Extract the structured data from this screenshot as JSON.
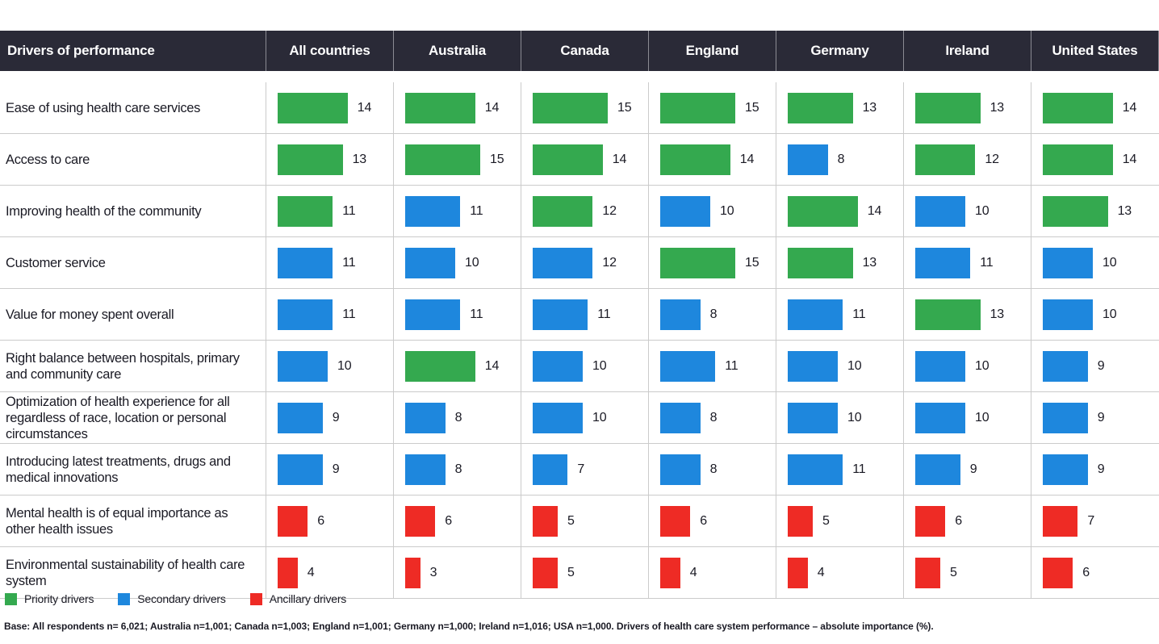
{
  "colors": {
    "priority": "#34a94f",
    "secondary": "#1e87dd",
    "ancillary": "#ee2b25",
    "header_bg": "#2a2a37",
    "grid_line": "#cbcbcb"
  },
  "chart_data": {
    "type": "table",
    "title": "Drivers of health care system performance – absolute importance (%)",
    "columns": [
      "Drivers of performance",
      "All countries",
      "Australia",
      "Canada",
      "England",
      "Germany",
      "Ireland",
      "United States"
    ],
    "value_range": [
      0,
      15
    ],
    "legend_position": "bottom-left",
    "rows": [
      {
        "label": "Ease of using health care services",
        "values": [
          14,
          14,
          15,
          15,
          13,
          13,
          14
        ],
        "types": [
          "priority",
          "priority",
          "priority",
          "priority",
          "priority",
          "priority",
          "priority"
        ]
      },
      {
        "label": "Access to care",
        "values": [
          13,
          15,
          14,
          14,
          8,
          12,
          14
        ],
        "types": [
          "priority",
          "priority",
          "priority",
          "priority",
          "secondary",
          "priority",
          "priority"
        ]
      },
      {
        "label": "Improving health of the community",
        "values": [
          11,
          11,
          12,
          10,
          14,
          10,
          13
        ],
        "types": [
          "priority",
          "secondary",
          "priority",
          "secondary",
          "priority",
          "secondary",
          "priority"
        ]
      },
      {
        "label": "Customer service",
        "values": [
          11,
          10,
          12,
          15,
          13,
          11,
          10
        ],
        "types": [
          "secondary",
          "secondary",
          "secondary",
          "priority",
          "priority",
          "secondary",
          "secondary"
        ]
      },
      {
        "label": "Value for money spent overall",
        "values": [
          11,
          11,
          11,
          8,
          11,
          13,
          10
        ],
        "types": [
          "secondary",
          "secondary",
          "secondary",
          "secondary",
          "secondary",
          "priority",
          "secondary"
        ]
      },
      {
        "label": "Right balance between hospitals, primary and community care",
        "values": [
          10,
          14,
          10,
          11,
          10,
          10,
          9
        ],
        "types": [
          "secondary",
          "priority",
          "secondary",
          "secondary",
          "secondary",
          "secondary",
          "secondary"
        ]
      },
      {
        "label": "Optimization of health experience for all regardless of race, location or personal circumstances",
        "values": [
          9,
          8,
          10,
          8,
          10,
          10,
          9
        ],
        "types": [
          "secondary",
          "secondary",
          "secondary",
          "secondary",
          "secondary",
          "secondary",
          "secondary"
        ]
      },
      {
        "label": "Introducing latest treatments, drugs and medical innovations",
        "values": [
          9,
          8,
          7,
          8,
          11,
          9,
          9
        ],
        "types": [
          "secondary",
          "secondary",
          "secondary",
          "secondary",
          "secondary",
          "secondary",
          "secondary"
        ]
      },
      {
        "label": "Mental health is of equal importance as other health issues",
        "values": [
          6,
          6,
          5,
          6,
          5,
          6,
          7
        ],
        "types": [
          "ancillary",
          "ancillary",
          "ancillary",
          "ancillary",
          "ancillary",
          "ancillary",
          "ancillary"
        ]
      },
      {
        "label": "Environmental sustainability of health care system",
        "values": [
          4,
          3,
          5,
          4,
          4,
          5,
          6
        ],
        "types": [
          "ancillary",
          "ancillary",
          "ancillary",
          "ancillary",
          "ancillary",
          "ancillary",
          "ancillary"
        ]
      }
    ]
  },
  "legend": {
    "items": [
      {
        "label": "Priority drivers",
        "type": "priority"
      },
      {
        "label": "Secondary drivers",
        "type": "secondary"
      },
      {
        "label": "Ancillary drivers",
        "type": "ancillary"
      }
    ]
  },
  "footnote": "Base: All respondents n= 6,021; Australia n=1,001; Canada n=1,003; England n=1,001; Germany n=1,000; Ireland n=1,016; USA n=1,000. Drivers of health care system performance – absolute importance (%)."
}
